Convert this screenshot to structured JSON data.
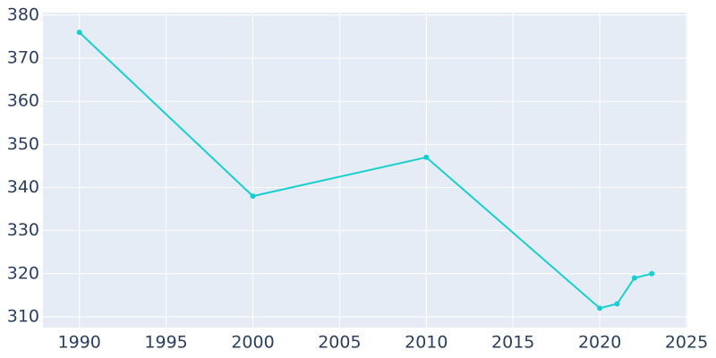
{
  "chart_data": {
    "type": "line",
    "x": [
      1990,
      2000,
      2010,
      2020,
      2021,
      2022,
      2023
    ],
    "series": [
      {
        "color": "#17cfcf",
        "values": [
          376,
          338,
          347,
          312,
          313,
          319,
          320
        ]
      }
    ],
    "xlim": [
      1987.9,
      2025.05
    ],
    "xticks": [
      1990,
      1995,
      2000,
      2005,
      2010,
      2015,
      2020,
      2025
    ],
    "ylim": [
      307.5,
      380.6
    ],
    "yticks": [
      310,
      320,
      330,
      340,
      350,
      360,
      370,
      380
    ],
    "grid": true,
    "background": "#e5ecf6"
  }
}
